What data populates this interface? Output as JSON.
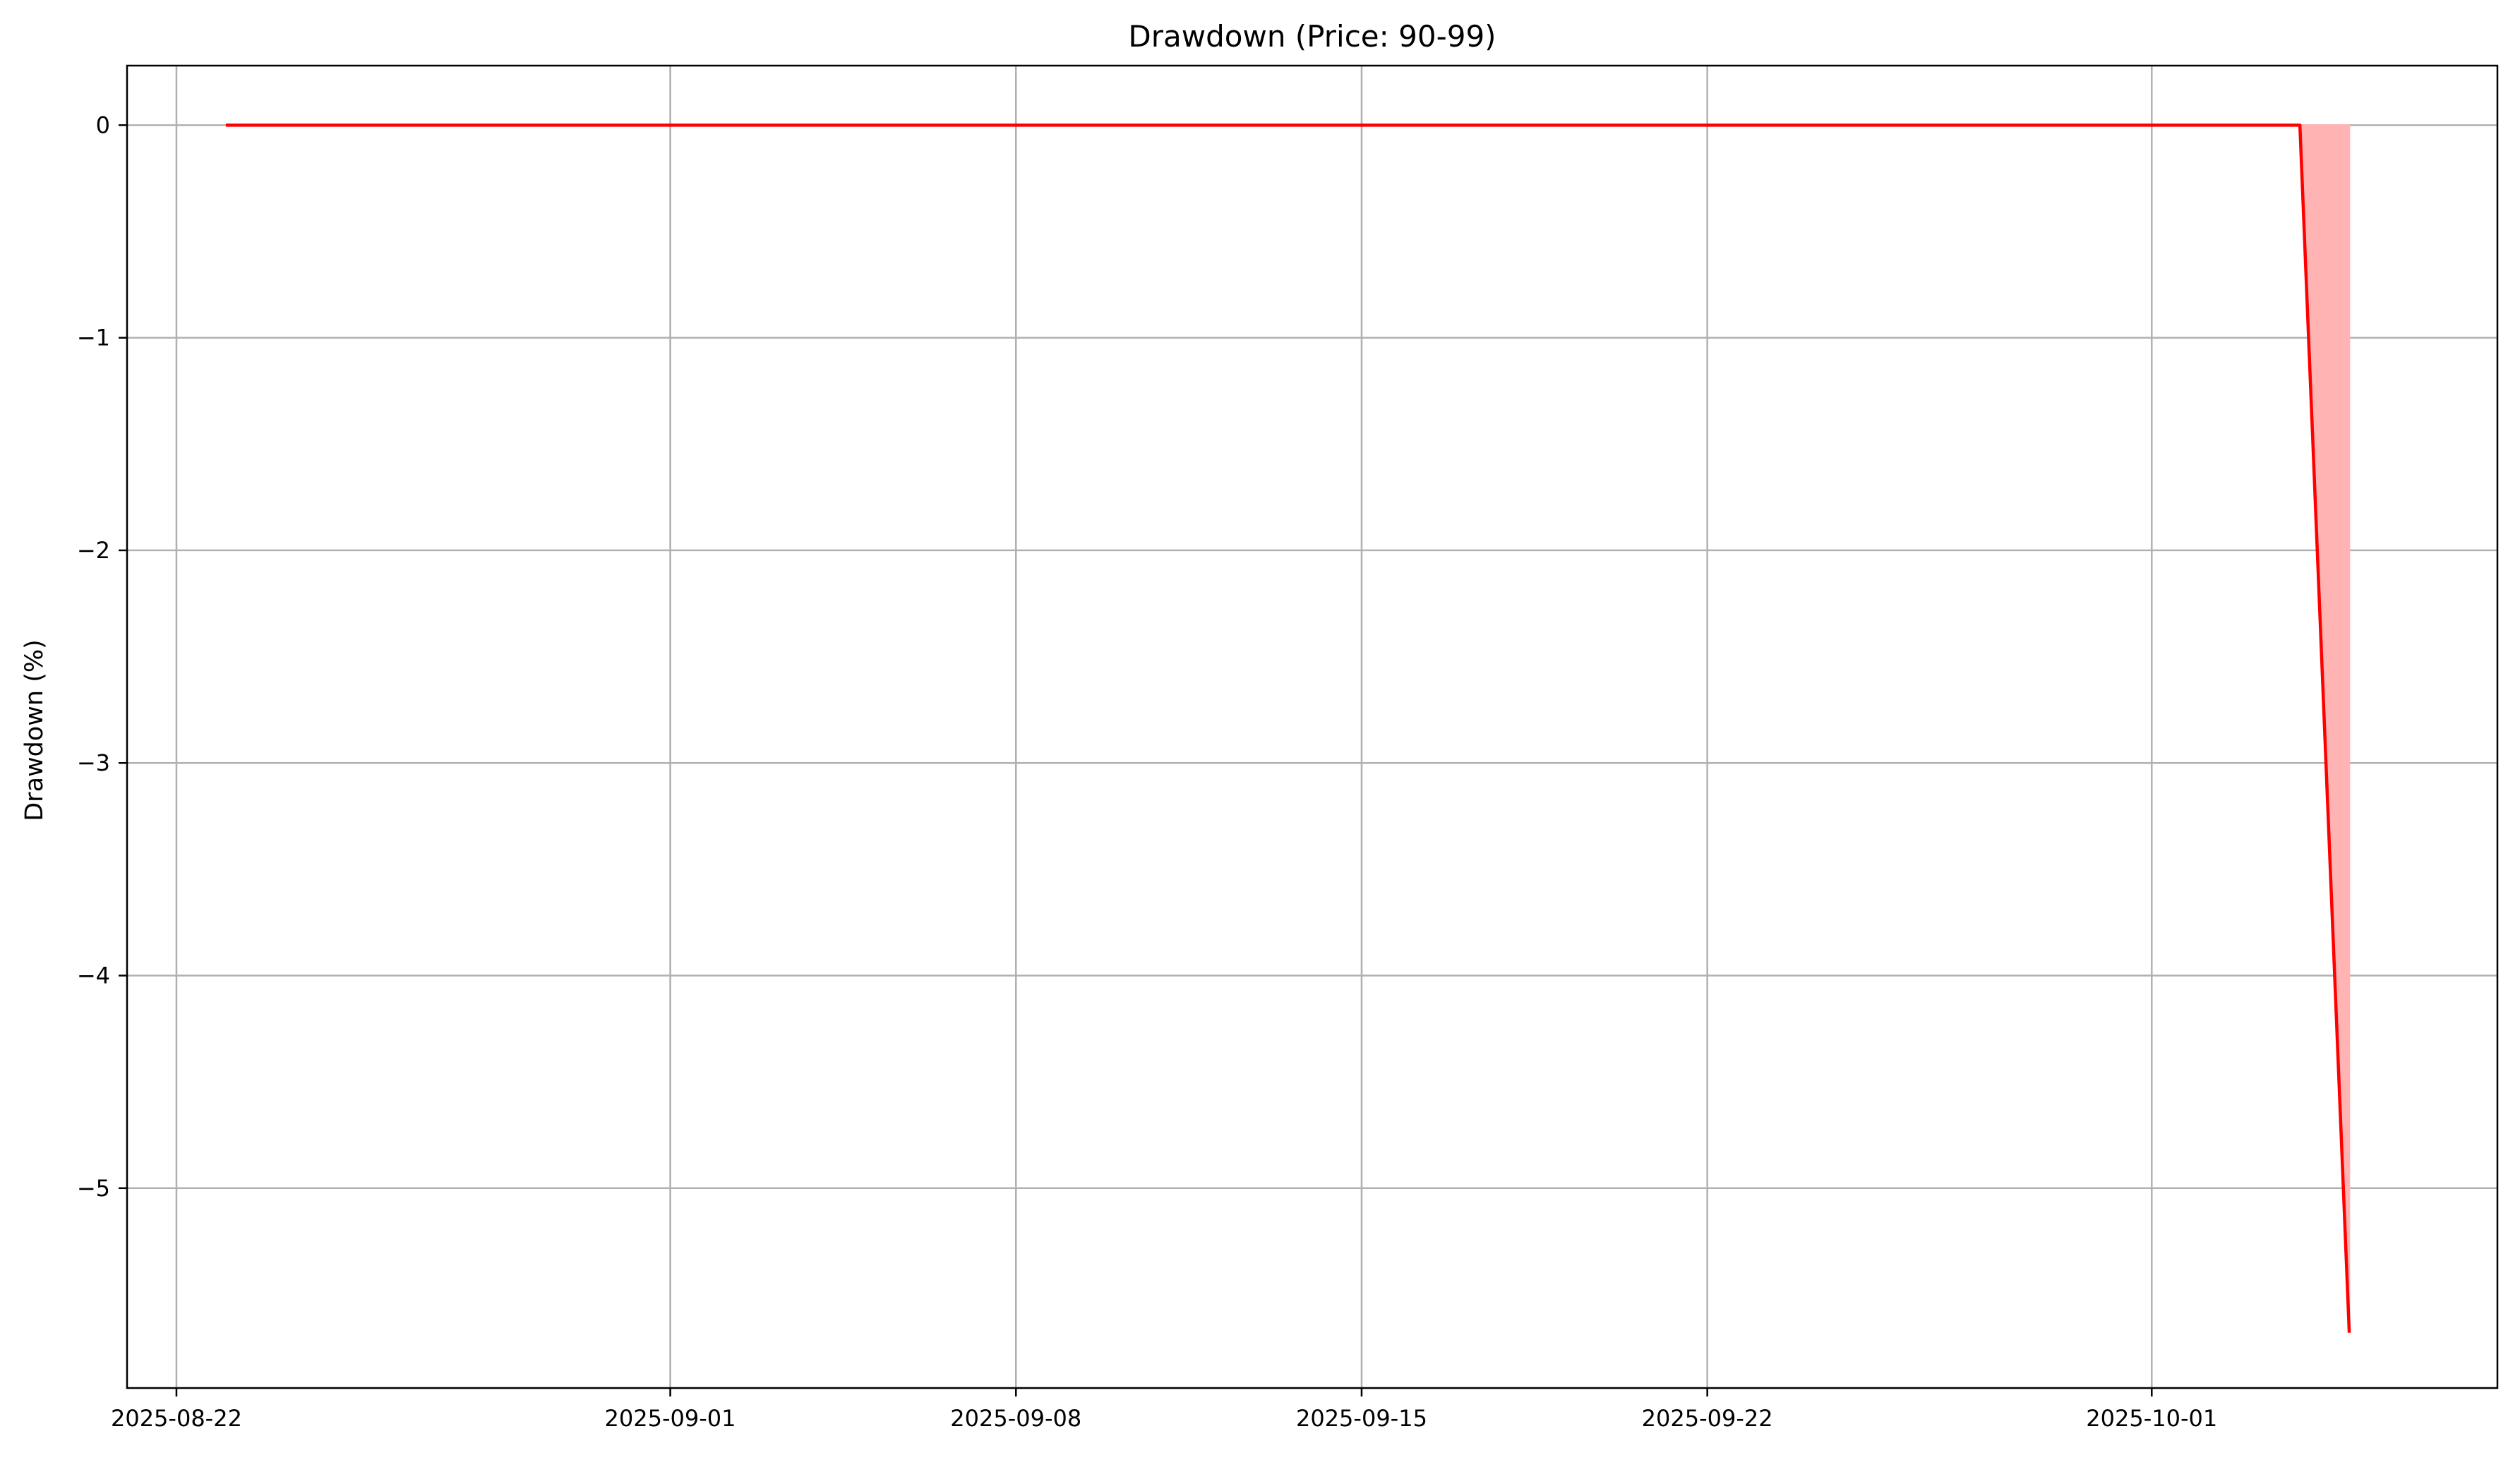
{
  "chart_data": {
    "type": "area",
    "title": "Drawdown (Price: 90-99)",
    "xlabel": "",
    "ylabel": "Drawdown (%)",
    "x_ticks": [
      "2025-08-22",
      "2025-09-01",
      "2025-09-08",
      "2025-09-15",
      "2025-09-22",
      "2025-10-01"
    ],
    "y_ticks": [
      0,
      -1,
      -2,
      -3,
      -4,
      -5
    ],
    "y_tick_labels": [
      "0",
      "−1",
      "−2",
      "−3",
      "−4",
      "−5"
    ],
    "xlim": [
      "2025-08-21",
      "2025-10-08"
    ],
    "ylim": [
      -5.94,
      0.28
    ],
    "grid": true,
    "series": [
      {
        "color": "#ff0000",
        "fill_color": "#ffb3b3",
        "points": [
          {
            "x": "2025-08-23",
            "y": 0
          },
          {
            "x": "2025-10-04",
            "y": 0
          },
          {
            "x": "2025-10-05",
            "y": -5.68
          }
        ]
      }
    ]
  }
}
